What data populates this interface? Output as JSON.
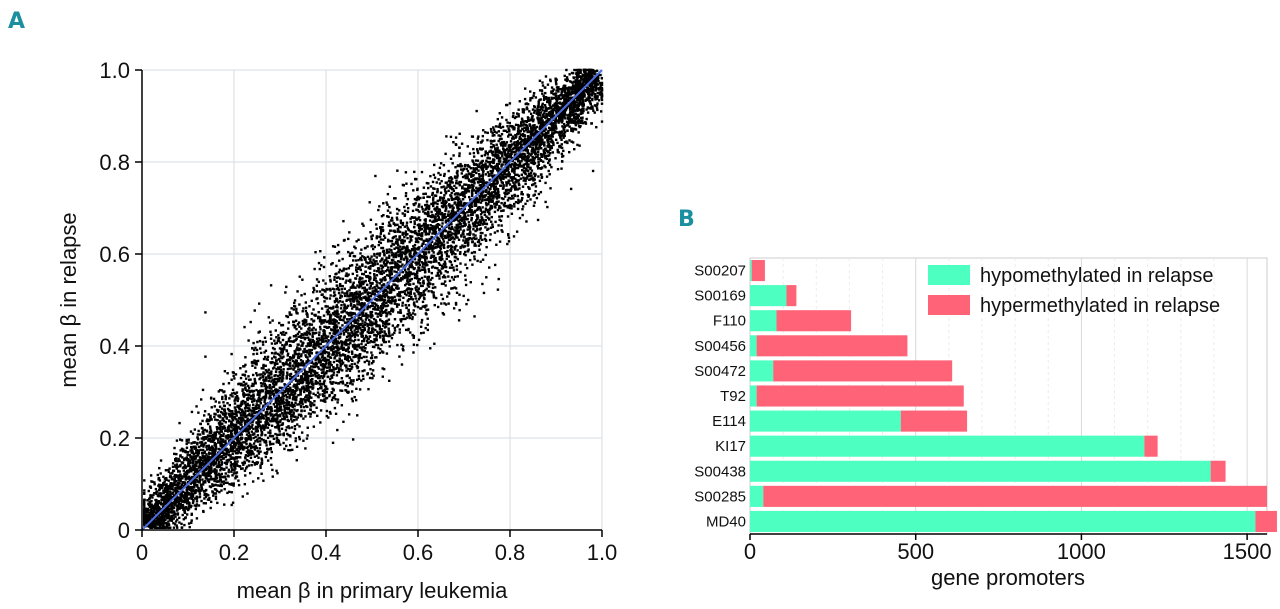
{
  "chart_data": [
    {
      "panel": "A",
      "type": "scatter",
      "title": "",
      "xlabel": "mean β in primary leukemia",
      "ylabel": "mean β in relapse",
      "xlim": [
        0,
        1.0
      ],
      "ylim": [
        0,
        1.0
      ],
      "x_ticks": [
        "0",
        "0.2",
        "0.4",
        "0.6",
        "0.8",
        "1.0"
      ],
      "y_ticks": [
        "0",
        "0.2",
        "0.4",
        "0.6",
        "0.8",
        "1.0"
      ],
      "grid": true,
      "point_color": "#000000",
      "identity_line": {
        "from": [
          0,
          0
        ],
        "to": [
          1.0,
          1.0
        ],
        "color": "#4a6fe3"
      },
      "points_note_spread": 0.06
    },
    {
      "panel": "B",
      "type": "bar",
      "orientation": "horizontal",
      "stacked": true,
      "title": "",
      "xlabel": "gene promoters",
      "ylabel": "",
      "xlim": [
        0,
        1560
      ],
      "x_ticks": [
        "0",
        "500",
        "1000",
        "1500"
      ],
      "x_tick_values": [
        0,
        500,
        1000,
        1500
      ],
      "grid": true,
      "legend_position": "top-right",
      "categories": [
        "S00207",
        "S00169",
        "F110",
        "S00456",
        "S00472",
        "T92",
        "E114",
        "KI17",
        "S00438",
        "S00285",
        "MD40"
      ],
      "series": [
        {
          "name": "hypomethylated in relapse",
          "color": "#4dffc0",
          "values": [
            5,
            110,
            80,
            20,
            70,
            20,
            455,
            1190,
            1390,
            40,
            1525
          ]
        },
        {
          "name": "hypermethylated in relapse",
          "color": "#ff6377",
          "values": [
            40,
            30,
            225,
            455,
            540,
            625,
            200,
            40,
            45,
            1520,
            65
          ]
        }
      ]
    }
  ]
}
